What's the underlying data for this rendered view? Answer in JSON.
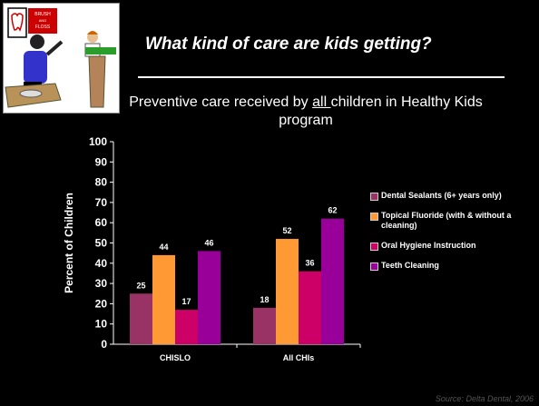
{
  "slide": {
    "title": "What kind of care are kids getting?",
    "subtitle_pre": "Preventive care received by ",
    "subtitle_ul": "all ",
    "subtitle_post": "children in Healthy Kids program",
    "source": "Source: Delta Dental, 2006",
    "clipart_sign": [
      "BRUSH",
      "AND",
      "FLOSS"
    ]
  },
  "chart_data": {
    "type": "bar",
    "categories": [
      "CHISLO",
      "All CHIs"
    ],
    "series": [
      {
        "name": "Dental Sealants (6+ years only)",
        "values": [
          25,
          18
        ],
        "color": "#993366"
      },
      {
        "name": "Topical Fluoride (with & without a cleaning)",
        "values": [
          44,
          52
        ],
        "color": "#FF9933"
      },
      {
        "name": "Oral Hygiene Instruction",
        "values": [
          17,
          36
        ],
        "color": "#CC0066"
      },
      {
        "name": "Teeth Cleaning",
        "values": [
          46,
          62
        ],
        "color": "#990099"
      }
    ],
    "ylabel": "Percent of Children",
    "ylim": [
      0,
      100
    ],
    "yticks": [
      "0",
      "10",
      "20",
      "30",
      "40",
      "50",
      "60",
      "70",
      "80",
      "90",
      "100"
    ],
    "legend": "right",
    "grid": false
  }
}
